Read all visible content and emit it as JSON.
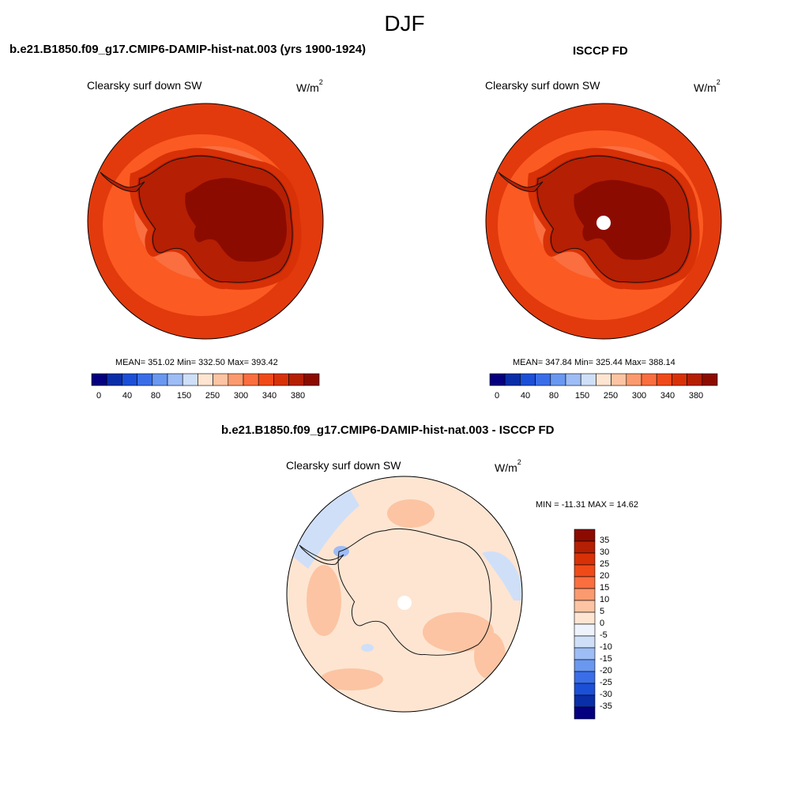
{
  "figure_title": "DJF",
  "panels": [
    {
      "title": "b.e21.B1850.f09_g17.CMIP6-DAMIP-hist-nat.003 (yrs 1900-1924)",
      "variable": "Clearsky surf down SW",
      "unit_base": "W/m",
      "unit_exp": "2",
      "stats": "MEAN= 351.02  Min= 332.50  Max= 393.42"
    },
    {
      "title": "ISCCP FD",
      "variable": "Clearsky surf down SW",
      "unit_base": "W/m",
      "unit_exp": "2",
      "stats": "MEAN= 347.84  Min= 325.44  Max= 388.14"
    },
    {
      "title": "b.e21.B1850.f09_g17.CMIP6-DAMIP-hist-nat.003 - ISCCP FD",
      "variable": "Clearsky surf down SW",
      "unit_base": "W/m",
      "unit_exp": "2",
      "stats": "MIN = -11.31 MAX =  14.62"
    }
  ],
  "colorbar_abs": {
    "labels": [
      "0",
      "40",
      "80",
      "150",
      "250",
      "300",
      "340",
      "380"
    ],
    "colors": [
      "#04007f",
      "#0a2ea8",
      "#1c4fd8",
      "#3a6ee8",
      "#6a98f0",
      "#9ebcf5",
      "#cfdff8",
      "#fde5d2",
      "#fcc4a2",
      "#fb9a6e",
      "#fa6e3f",
      "#f04a19",
      "#d83108",
      "#b51f04",
      "#8c0b01"
    ]
  },
  "colorbar_diff": {
    "labels": [
      "35",
      "30",
      "25",
      "20",
      "15",
      "10",
      "5",
      "0",
      "-5",
      "-10",
      "-15",
      "-20",
      "-25",
      "-30",
      "-35"
    ],
    "colors": [
      "#8c0b01",
      "#b51f04",
      "#d83108",
      "#f04a19",
      "#fa6e3f",
      "#fb9a6e",
      "#fcc4a2",
      "#fde5d2",
      "#eef3fb",
      "#cfdff8",
      "#9ebcf5",
      "#6a98f0",
      "#3a6ee8",
      "#1c4fd8",
      "#0a2ea8",
      "#04007f"
    ]
  },
  "map_colors": {
    "ocean_outer": "#e23a0c",
    "ocean_mid": "#fb5a22",
    "coast_band": "#fa7a45",
    "ice_edge": "#d83108",
    "ice_mid": "#b51f04",
    "plateau": "#8c0b01",
    "diff_bg": "#fde5d2",
    "diff_pos": "#fcc4a2",
    "diff_neg": "#cfdff8",
    "diff_neg2": "#9ebcf5"
  }
}
